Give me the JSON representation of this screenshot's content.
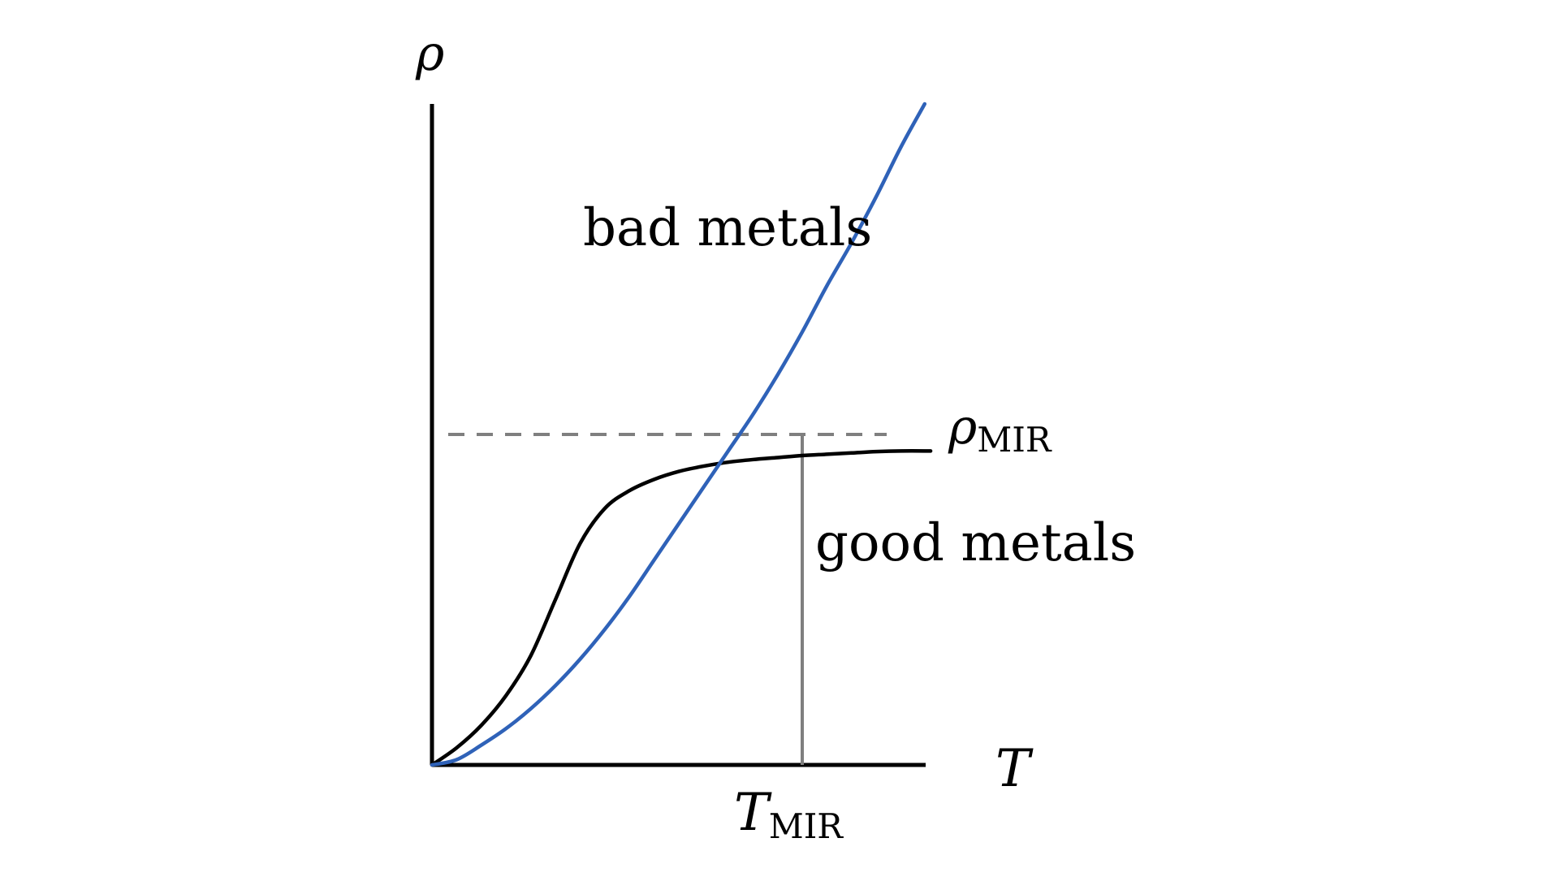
{
  "chart_data": {
    "type": "line",
    "xlabel": "T",
    "ylabel": "ρ",
    "xlim": [
      0,
      1
    ],
    "ylim": [
      0,
      1
    ],
    "grid": false,
    "reference_lines": {
      "rho_mir": {
        "value": 0.5,
        "label_main": "ρ",
        "label_sub": "MIR",
        "style": "dashed",
        "color": "#7f7f7f"
      },
      "t_mir": {
        "value": 0.75,
        "label_main": "T",
        "label_sub": "MIR",
        "style": "solid",
        "color": "#7f7f7f"
      }
    },
    "series": [
      {
        "name": "bad metals",
        "color": "#2f62b8",
        "x": [
          0.0,
          0.05,
          0.1,
          0.15,
          0.2,
          0.25,
          0.3,
          0.35,
          0.4,
          0.45,
          0.5,
          0.55,
          0.6,
          0.65,
          0.7,
          0.75,
          0.8,
          0.85,
          0.9,
          0.95,
          0.998
        ],
        "y": [
          0.0,
          0.008,
          0.03,
          0.055,
          0.085,
          0.12,
          0.16,
          0.205,
          0.255,
          0.31,
          0.365,
          0.42,
          0.475,
          0.53,
          0.59,
          0.655,
          0.725,
          0.79,
          0.86,
          0.935,
          1.0
        ]
      },
      {
        "name": "good metals",
        "color": "#000000",
        "x": [
          0.0,
          0.05,
          0.1,
          0.15,
          0.2,
          0.25,
          0.3,
          0.35,
          0.4,
          0.45,
          0.5,
          0.55,
          0.6,
          0.65,
          0.7,
          0.75,
          0.8,
          0.85,
          0.9,
          0.95,
          1.01
        ],
        "y": [
          0.0,
          0.026,
          0.06,
          0.105,
          0.165,
          0.25,
          0.335,
          0.388,
          0.415,
          0.432,
          0.444,
          0.452,
          0.458,
          0.462,
          0.465,
          0.468,
          0.47,
          0.472,
          0.474,
          0.475,
          0.475
        ]
      }
    ]
  }
}
